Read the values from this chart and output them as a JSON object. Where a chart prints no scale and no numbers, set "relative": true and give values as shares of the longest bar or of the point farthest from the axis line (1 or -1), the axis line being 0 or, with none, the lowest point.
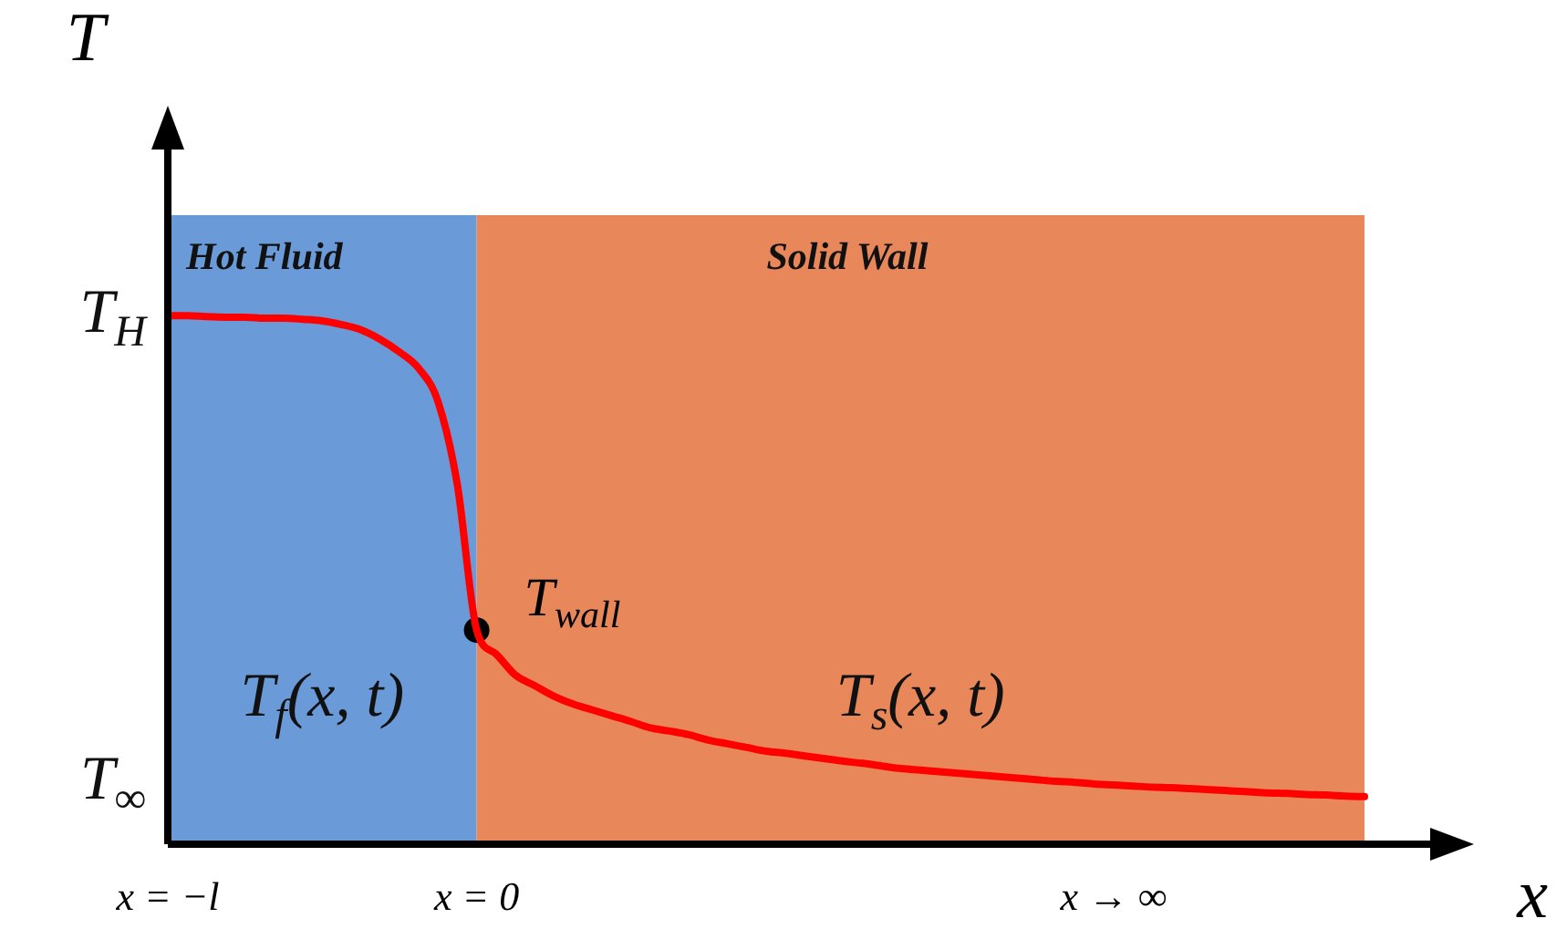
{
  "chart_data": {
    "type": "line",
    "relative": true,
    "xlabel": "x",
    "ylabel": "T",
    "categories": [
      "x = −l",
      null,
      null,
      null,
      null,
      null,
      null,
      null,
      null,
      null,
      null,
      null,
      null,
      null,
      null,
      null,
      "x = 0",
      null,
      null,
      null,
      null,
      null,
      null,
      null,
      null,
      null,
      null,
      null,
      null,
      null,
      null,
      null,
      null,
      null,
      null,
      null,
      null,
      null,
      null,
      null,
      null,
      null,
      null,
      null,
      null,
      null,
      null,
      null,
      null,
      "x → ∞",
      null,
      null,
      null,
      null,
      null,
      null,
      null,
      null,
      null,
      null,
      null,
      null,
      null
    ],
    "series": [
      {
        "color": "#ff0000",
        "values": [
          1.0,
          1.0,
          0.998,
          0.997,
          0.997,
          0.995,
          0.995,
          0.993,
          0.99,
          0.983,
          0.973,
          0.955,
          0.931,
          0.9,
          0.837,
          0.68,
          0.405,
          0.36,
          0.32,
          0.3,
          0.28,
          0.265,
          0.254,
          0.243,
          0.232,
          0.22,
          0.214,
          0.207,
          0.197,
          0.19,
          0.183,
          0.176,
          0.172,
          0.167,
          0.162,
          0.157,
          0.153,
          0.148,
          0.143,
          0.14,
          0.137,
          0.134,
          0.131,
          0.128,
          0.125,
          0.122,
          0.119,
          0.117,
          0.114,
          0.112,
          0.11,
          0.108,
          0.107,
          0.105,
          0.103,
          0.101,
          0.099,
          0.097,
          0.096,
          0.094,
          0.093,
          0.091,
          0.09
        ]
      },
      {
        "type": "scatter",
        "color": "#000000",
        "x": [
          "x = 0"
        ],
        "values": [
          0.405
        ]
      }
    ],
    "annotations": [
      {
        "text": "T$_{wall}$",
        "x": "x = 0",
        "y": 0.405
      },
      "T$_{H}$",
      "T$_{∞}$",
      "T$_{f}$(x, t)",
      "T$_{s}$(x, t)",
      "Hot Fluid",
      "Solid Wall"
    ],
    "legend": false,
    "line_style": "solid"
  }
}
